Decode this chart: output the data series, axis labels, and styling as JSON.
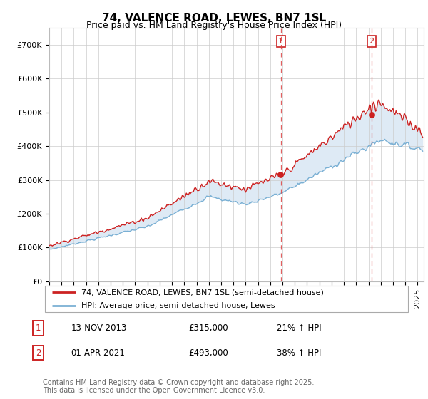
{
  "title": "74, VALENCE ROAD, LEWES, BN7 1SL",
  "subtitle": "Price paid vs. HM Land Registry's House Price Index (HPI)",
  "ylim": [
    0,
    750000
  ],
  "yticks": [
    0,
    100000,
    200000,
    300000,
    400000,
    500000,
    600000,
    700000
  ],
  "ytick_labels": [
    "£0",
    "£100K",
    "£200K",
    "£300K",
    "£400K",
    "£500K",
    "£600K",
    "£700K"
  ],
  "xmin": 1995,
  "xmax": 2025.5,
  "marker1_date": 2013.87,
  "marker1_price": 315000,
  "marker1_date_str": "13-NOV-2013",
  "marker1_pct": "21% ↑ HPI",
  "marker2_date": 2021.25,
  "marker2_price": 493000,
  "marker2_date_str": "01-APR-2021",
  "marker2_pct": "38% ↑ HPI",
  "red_color": "#cc2222",
  "blue_color": "#7ab0d4",
  "blue_fill": "#deeaf5",
  "grid_color": "#cccccc",
  "vline_color": "#dd4444",
  "background_color": "#ffffff",
  "legend_label_red": "74, VALENCE ROAD, LEWES, BN7 1SL (semi-detached house)",
  "legend_label_blue": "HPI: Average price, semi-detached house, Lewes",
  "footnote": "Contains HM Land Registry data © Crown copyright and database right 2025.\nThis data is licensed under the Open Government Licence v3.0.",
  "title_fontsize": 11,
  "subtitle_fontsize": 9,
  "tick_fontsize": 8,
  "legend_fontsize": 8,
  "annot_fontsize": 8.5,
  "footnote_fontsize": 7
}
